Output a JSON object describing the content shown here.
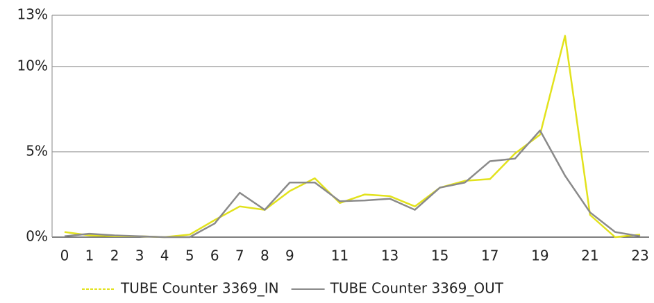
{
  "chart_data": {
    "type": "line",
    "categories": [
      "0",
      "1",
      "2",
      "3",
      "4",
      "5",
      "6",
      "7",
      "8",
      "9",
      null,
      "11",
      null,
      "13",
      null,
      "15",
      null,
      "17",
      null,
      "19",
      null,
      "21",
      null,
      "23"
    ],
    "series": [
      {
        "name": "TUBE Counter 3369_IN",
        "color": "#e2e21c",
        "values": [
          0.3,
          0.1,
          0.05,
          0.05,
          0,
          0.15,
          1.0,
          1.8,
          1.6,
          2.7,
          3.45,
          2.0,
          2.5,
          2.4,
          1.8,
          2.9,
          3.3,
          3.4,
          4.9,
          6.0,
          11.8,
          1.3,
          0,
          0.15
        ]
      },
      {
        "name": "TUBE Counter 3369_OUT",
        "color": "#8a8a8a",
        "values": [
          0.05,
          0.2,
          0.1,
          0.05,
          0,
          0,
          0.8,
          2.6,
          1.6,
          3.2,
          3.2,
          2.1,
          2.15,
          2.25,
          1.6,
          2.9,
          3.2,
          4.45,
          4.6,
          6.25,
          3.6,
          1.45,
          0.3,
          0.05
        ]
      }
    ],
    "ylim": [
      0,
      13
    ],
    "yticks": [
      {
        "value": 0,
        "label": "0%"
      },
      {
        "value": 5,
        "label": "5%"
      },
      {
        "value": 10,
        "label": "10%"
      },
      {
        "value": 13,
        "label": "13%"
      }
    ],
    "grid": true,
    "legend": "bottom"
  }
}
